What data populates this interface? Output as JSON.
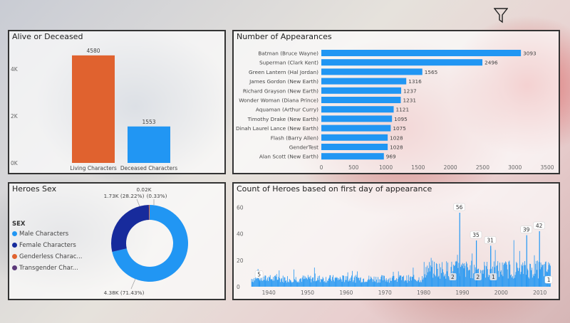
{
  "colors": {
    "orange": "#E0622F",
    "blue": "#2196F3",
    "navy": "#172B9C",
    "darkpurple": "#5C3A7A"
  },
  "toolbar": {
    "filter_icon": "filter-icon"
  },
  "panels": {
    "alive": {
      "title": "Alive or Deceased"
    },
    "appearances": {
      "title": "Number of Appearances"
    },
    "sex": {
      "title": "Heroes Sex",
      "legend_title": "SEX"
    },
    "timeline": {
      "title": "Count of Heroes based on first day of appearance"
    }
  },
  "chart_data": [
    {
      "id": "alive",
      "type": "bar",
      "title": "Alive or Deceased",
      "categories": [
        "Living Characters",
        "Deceased Characters"
      ],
      "values": [
        4580,
        1553
      ],
      "value_labels": [
        "4580",
        "1553"
      ],
      "colors": [
        "#E0622F",
        "#2196F3"
      ],
      "yticks": [
        {
          "v": 0,
          "label": "0K"
        },
        {
          "v": 2000,
          "label": "2K"
        },
        {
          "v": 4000,
          "label": "4K"
        }
      ],
      "ylim": [
        0,
        5000
      ]
    },
    {
      "id": "appearances",
      "type": "bar",
      "orientation": "horizontal",
      "title": "Number of Appearances",
      "categories": [
        "Batman (Bruce Wayne)",
        "Superman (Clark Kent)",
        "Green Lantern (Hal Jordan)",
        "James Gordon (New Earth)",
        "Richard Grayson (New Earth)",
        "Wonder Woman (Diana Prince)",
        "Aquaman (Arthur Curry)",
        "Timothy Drake (New Earth)",
        "Dinah Laurel Lance (New Earth)",
        "Flash (Barry Allen)",
        "GenderTest",
        "Alan Scott (New Earth)"
      ],
      "values": [
        3093,
        2496,
        1565,
        1316,
        1237,
        1231,
        1121,
        1095,
        1075,
        1028,
        1028,
        969
      ],
      "value_labels": [
        "3093",
        "2496",
        "1565",
        "1316",
        "1237",
        "1231",
        "1121",
        "1095",
        "1075",
        "1028",
        "1028",
        "969"
      ],
      "xticks": [
        "0",
        "500",
        "1000",
        "1500",
        "2000",
        "2500",
        "3000",
        "3500"
      ],
      "xlim": [
        0,
        3500
      ]
    },
    {
      "id": "sex",
      "type": "pie",
      "title": "Heroes Sex",
      "legend": [
        "Male Characters",
        "Female Characters",
        "Genderless Charac...",
        "Transgender Char..."
      ],
      "values": [
        4380,
        1730,
        20,
        0
      ],
      "colors": [
        "#2196F3",
        "#172B9C",
        "#E0622F",
        "#5C3A7A"
      ],
      "labels": {
        "male": "4.38K (71.43%)",
        "female": "1.73K (28.22%)",
        "small": "(0.33%)",
        "top": "0.02K"
      }
    },
    {
      "id": "timeline",
      "type": "bar",
      "title": "Count of Heroes based on first day of appearance",
      "xticks": [
        "1940",
        "1950",
        "1960",
        "1970",
        "1980",
        "1990",
        "2000",
        "2010"
      ],
      "xlim": [
        1935,
        2013
      ],
      "yticks": [
        "0",
        "20",
        "40",
        "60"
      ],
      "ylim": [
        0,
        63
      ],
      "peaks": [
        {
          "x": 1937.5,
          "y": 5,
          "label": "5"
        },
        {
          "x": 1989.2,
          "y": 56,
          "label": "56"
        },
        {
          "x": 1993.5,
          "y": 35,
          "label": "35"
        },
        {
          "x": 1997.2,
          "y": 31,
          "label": "31"
        },
        {
          "x": 2006.5,
          "y": 39,
          "label": "39"
        },
        {
          "x": 2009.8,
          "y": 42,
          "label": "42"
        },
        {
          "x": 2012.3,
          "y": 1,
          "label": "1"
        }
      ],
      "low_labels": [
        {
          "x": 1987.5,
          "label": "2"
        },
        {
          "x": 1994.0,
          "label": "2"
        },
        {
          "x": 1998.0,
          "label": "1"
        }
      ]
    }
  ]
}
